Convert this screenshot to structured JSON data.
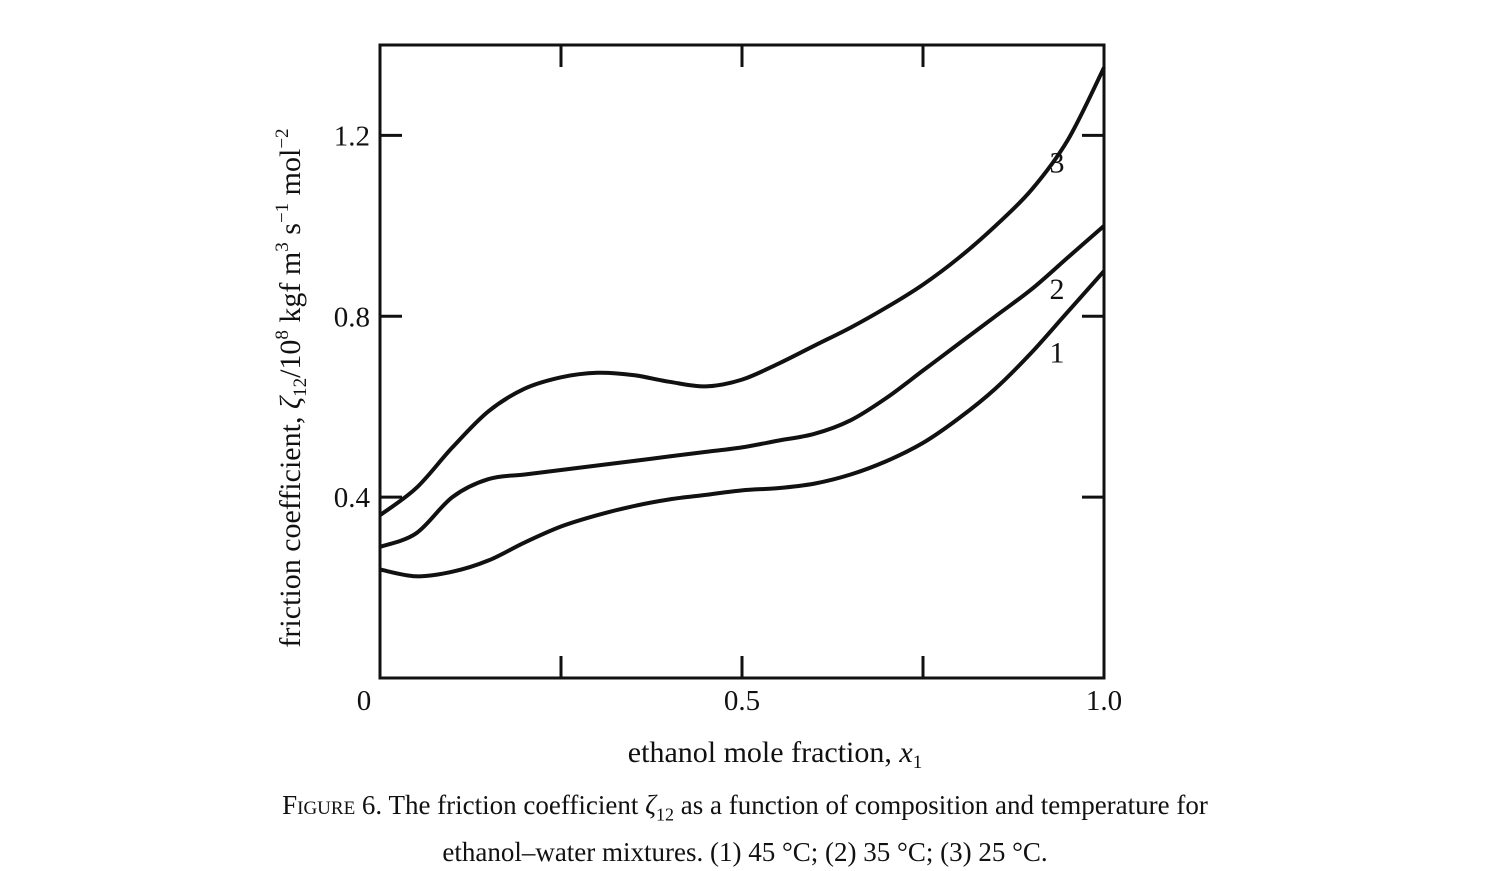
{
  "chart_data": {
    "type": "line",
    "title": "",
    "xlabel": {
      "text": "ethanol mole fraction, ",
      "symbol": "x",
      "sub": "1"
    },
    "ylabel": {
      "text": "friction coefficient, ",
      "symbol": "ζ",
      "sub": "12",
      "unit_a": "/10",
      "unit_exp8": "8",
      "unit_b": " kgf m",
      "unit_exp3": "3",
      "unit_c": " s",
      "unit_expm1": "−1",
      "unit_d": " mol",
      "unit_expm2": "−2"
    },
    "xlim": [
      0,
      1.0
    ],
    "ylim": [
      0,
      1.4
    ],
    "x_ticks": [
      {
        "value": 0,
        "label": "0"
      },
      {
        "value": 0.5,
        "label": "0.5"
      },
      {
        "value": 1.0,
        "label": "1.0"
      }
    ],
    "x_minor_ticks": [
      0.25,
      0.75
    ],
    "y_ticks": [
      {
        "value": 0.4,
        "label": "0.4"
      },
      {
        "value": 0.8,
        "label": "0.8"
      },
      {
        "value": 1.2,
        "label": "1.2"
      }
    ],
    "grid": false,
    "series": [
      {
        "name": "1",
        "x": [
          0,
          0.05,
          0.1,
          0.15,
          0.2,
          0.25,
          0.3,
          0.35,
          0.4,
          0.45,
          0.5,
          0.55,
          0.6,
          0.65,
          0.7,
          0.75,
          0.8,
          0.85,
          0.9,
          0.95,
          1.0
        ],
        "y": [
          0.24,
          0.225,
          0.235,
          0.26,
          0.3,
          0.335,
          0.36,
          0.38,
          0.395,
          0.405,
          0.415,
          0.42,
          0.43,
          0.45,
          0.48,
          0.52,
          0.575,
          0.64,
          0.72,
          0.81,
          0.9
        ]
      },
      {
        "name": "2",
        "x": [
          0,
          0.05,
          0.1,
          0.15,
          0.2,
          0.25,
          0.3,
          0.35,
          0.4,
          0.45,
          0.5,
          0.55,
          0.6,
          0.65,
          0.7,
          0.75,
          0.8,
          0.85,
          0.9,
          0.95,
          1.0
        ],
        "y": [
          0.29,
          0.32,
          0.4,
          0.44,
          0.45,
          0.46,
          0.47,
          0.48,
          0.49,
          0.5,
          0.51,
          0.525,
          0.54,
          0.57,
          0.62,
          0.68,
          0.74,
          0.8,
          0.86,
          0.93,
          1.0
        ]
      },
      {
        "name": "3",
        "x": [
          0,
          0.05,
          0.1,
          0.15,
          0.2,
          0.25,
          0.3,
          0.35,
          0.4,
          0.45,
          0.5,
          0.55,
          0.6,
          0.65,
          0.7,
          0.75,
          0.8,
          0.85,
          0.9,
          0.95,
          1.0
        ],
        "y": [
          0.36,
          0.42,
          0.51,
          0.59,
          0.64,
          0.665,
          0.675,
          0.67,
          0.655,
          0.645,
          0.66,
          0.695,
          0.735,
          0.775,
          0.82,
          0.87,
          0.93,
          1.0,
          1.08,
          1.19,
          1.35
        ]
      }
    ],
    "series_labels": [
      {
        "series": "1",
        "text": "1",
        "x": 0.935,
        "y": 0.72
      },
      {
        "series": "2",
        "text": "2",
        "x": 0.935,
        "y": 0.86
      },
      {
        "series": "3",
        "text": "3",
        "x": 0.935,
        "y": 1.14
      }
    ]
  },
  "caption": {
    "label": "Figure 6.",
    "text_before": " The friction coefficient ",
    "symbol": "ζ",
    "sub": "12",
    "text_after_line1": " as a function of composition and temperature for",
    "line2": "ethanol–water mixtures. (1) 45 °C; (2) 35 °C; (3) 25 °C."
  }
}
